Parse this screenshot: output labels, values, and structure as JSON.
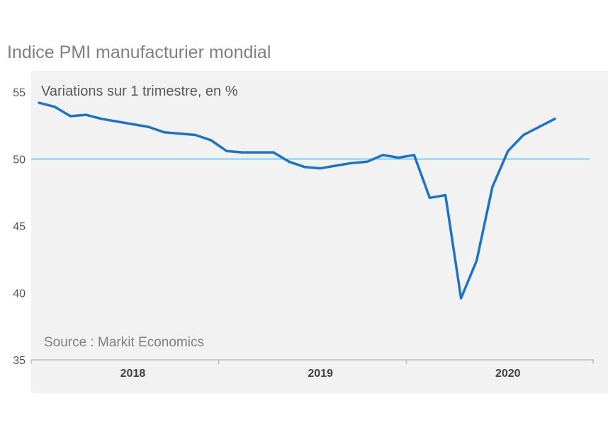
{
  "chart_data": {
    "type": "line",
    "title": "Indice PMI manufacturier mondial",
    "subtitle": "Variations sur 1 trimestre, en %",
    "source": "Source : Markit Economics",
    "ylim": [
      35,
      55
    ],
    "yticks": [
      "35",
      "40",
      "45",
      "50",
      "55"
    ],
    "ytick_values": [
      35,
      40,
      45,
      50,
      55
    ],
    "xticks": [
      {
        "label": "2018",
        "value": 2018.5
      },
      {
        "label": "2019",
        "value": 2019.5
      },
      {
        "label": "2020",
        "value": 2020.5
      }
    ],
    "xlim": [
      2017.958,
      2020.958
    ],
    "grid": false,
    "reference_line": {
      "y": 50,
      "color": "#4fc3ea"
    },
    "series": [
      {
        "color": "#1f73c1",
        "x": [
          2018.0,
          2018.083,
          2018.167,
          2018.25,
          2018.333,
          2018.417,
          2018.5,
          2018.583,
          2018.667,
          2018.75,
          2018.833,
          2018.917,
          2019.0,
          2019.083,
          2019.167,
          2019.25,
          2019.333,
          2019.417,
          2019.5,
          2019.583,
          2019.667,
          2019.75,
          2019.833,
          2019.917,
          2020.0,
          2020.083,
          2020.167,
          2020.25,
          2020.333,
          2020.417,
          2020.5,
          2020.583,
          2020.667,
          2020.75
        ],
        "values": [
          54.2,
          53.9,
          53.2,
          53.3,
          53.0,
          52.8,
          52.6,
          52.4,
          52.0,
          51.9,
          51.8,
          51.4,
          50.6,
          50.5,
          50.5,
          50.5,
          49.8,
          49.4,
          49.3,
          49.5,
          49.7,
          49.8,
          50.3,
          50.1,
          50.3,
          47.1,
          47.3,
          39.6,
          42.4,
          47.9,
          50.6,
          51.8,
          52.4,
          53.0
        ]
      }
    ]
  }
}
